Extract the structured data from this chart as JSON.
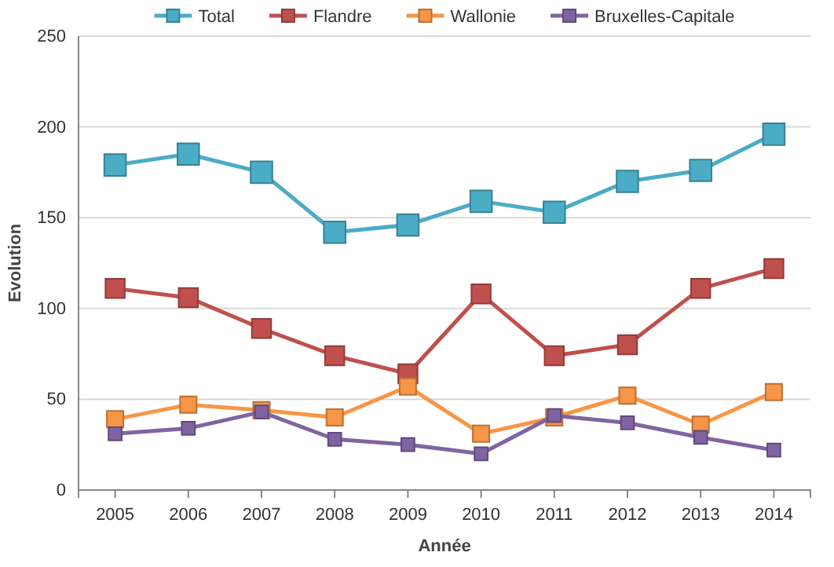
{
  "chart_data": {
    "type": "line",
    "xlabel": "Année",
    "ylabel": "Evolution",
    "categories": [
      "2005",
      "2006",
      "2007",
      "2008",
      "2009",
      "2010",
      "2011",
      "2012",
      "2013",
      "2014"
    ],
    "series": [
      {
        "name": "Total",
        "color": "#4bacc6",
        "values": [
          179,
          185,
          175,
          142,
          146,
          159,
          153,
          170,
          176,
          196
        ]
      },
      {
        "name": "Flandre",
        "color": "#c0504d",
        "values": [
          111,
          106,
          89,
          74,
          64,
          108,
          74,
          80,
          111,
          122
        ]
      },
      {
        "name": "Wallonie",
        "color": "#f79646",
        "values": [
          39,
          47,
          44,
          40,
          57,
          31,
          40,
          52,
          36,
          54
        ]
      },
      {
        "name": "Bruxelles-Capitale",
        "color": "#8064a2",
        "values": [
          31,
          34,
          43,
          28,
          25,
          20,
          41,
          37,
          29,
          22
        ]
      }
    ],
    "ylim": [
      0,
      250
    ],
    "yticks": [
      0,
      50,
      100,
      150,
      200,
      250
    ],
    "grid": "y",
    "legend": "top",
    "marker": "square",
    "line_style": "solid"
  }
}
